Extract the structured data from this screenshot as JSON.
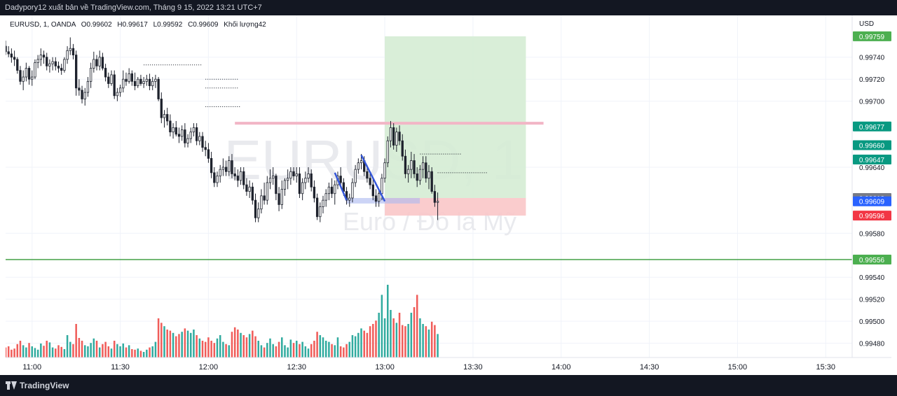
{
  "header": {
    "publish_line": "Dadypory12 xuất bản về TradingView.com, Tháng 9 15, 2022 13:21 UTC+7"
  },
  "legend": {
    "symbol": "EURUSD, 1, OANDA",
    "open": "O0.99602",
    "high": "H0.99617",
    "low": "L0.99592",
    "close": "C0.99609",
    "volume": "Khối lượng42"
  },
  "watermark": {
    "symbol": "EURUSD, 1",
    "description": "Euro / Đô la Mỹ"
  },
  "footer": {
    "brand": "TradingView"
  },
  "colors": {
    "up": "#26a69a",
    "down": "#ef5350",
    "candle_body": "#1e222d",
    "target_zone": "#d5ecd4",
    "stop_zone": "#f9c6c8",
    "level_line": "#43a047",
    "pink_line": "#f2b6c6",
    "blue_line": "#3557d8"
  },
  "chart_data": {
    "type": "candlestick",
    "currency_label": "USD",
    "ylim": [
      0.99467,
      0.99778
    ],
    "time_window": [
      "10:51",
      "15:39"
    ],
    "x_ticks": [
      {
        "t": "11:00",
        "label": "11:00"
      },
      {
        "t": "11:30",
        "label": "11:30"
      },
      {
        "t": "12:00",
        "label": "12:00"
      },
      {
        "t": "12:30",
        "label": "12:30"
      },
      {
        "t": "13:00",
        "label": "13:00"
      },
      {
        "t": "13:30",
        "label": "13:30"
      },
      {
        "t": "14:00",
        "label": "14:00"
      },
      {
        "t": "14:30",
        "label": "14:30"
      },
      {
        "t": "15:00",
        "label": "15:00"
      },
      {
        "t": "15:30",
        "label": "15:30"
      }
    ],
    "y_ticks": [
      {
        "v": 0.9974,
        "label": "0.99740"
      },
      {
        "v": 0.9972,
        "label": "0.99720"
      },
      {
        "v": 0.997,
        "label": "0.99700"
      },
      {
        "v": 0.9964,
        "label": "0.99640"
      },
      {
        "v": 0.9958,
        "label": "0.99580"
      },
      {
        "v": 0.9954,
        "label": "0.99540"
      },
      {
        "v": 0.9952,
        "label": "0.99520"
      },
      {
        "v": 0.995,
        "label": "0.99500"
      },
      {
        "v": 0.9948,
        "label": "0.99480"
      }
    ],
    "price_tags": [
      {
        "v": 0.99759,
        "label": "0.99759",
        "color": "#4caf50"
      },
      {
        "v": 0.99677,
        "label": "0.99677",
        "color": "#089981"
      },
      {
        "v": 0.9966,
        "label": "0.99660",
        "color": "#089981"
      },
      {
        "v": 0.99647,
        "label": "0.99647",
        "color": "#089981"
      },
      {
        "v": 0.99612,
        "label": "0.99612",
        "color": "#787b86"
      },
      {
        "v": 0.99609,
        "label": "0.99609",
        "color": "#2962ff"
      },
      {
        "v": 0.99596,
        "label": "0.99596",
        "color": "#f23645"
      },
      {
        "v": 0.99556,
        "label": "0.99556",
        "color": "#4caf50"
      }
    ],
    "volume_max": 130,
    "candles": [],
    "zones": {
      "target": {
        "t_start": "13:00",
        "t_end": "13:48",
        "top": 0.99759,
        "bottom": 0.99612
      },
      "stop": {
        "t_start": "13:00",
        "t_end": "13:48",
        "top": 0.99612,
        "bottom": 0.99596
      }
    },
    "horizontal_lines": [
      {
        "v": 0.99556,
        "t_start": "10:51",
        "t_end": "15:39",
        "color": "#43a047",
        "width": 1.5
      },
      {
        "v": 0.9968,
        "t_start": "12:09",
        "t_end": "13:54",
        "color": "#f2b6c6",
        "width": 4
      }
    ],
    "dotted_lines": [
      {
        "v": 0.99733,
        "t_start": "11:38",
        "t_end": "11:58"
      },
      {
        "v": 0.9972,
        "t_start": "11:59",
        "t_end": "12:10"
      },
      {
        "v": 0.99712,
        "t_start": "11:59",
        "t_end": "12:10"
      },
      {
        "v": 0.99695,
        "t_start": "11:59",
        "t_end": "12:11"
      },
      {
        "v": 0.99652,
        "t_start": "13:12",
        "t_end": "13:26"
      },
      {
        "v": 0.99635,
        "t_start": "13:18",
        "t_end": "13:35"
      }
    ],
    "blue_strokes": [
      {
        "points": [
          [
            "12:43",
            0.99635
          ],
          [
            "12:47",
            0.9961
          ]
        ]
      },
      {
        "points": [
          [
            "12:52",
            0.99651
          ],
          [
            "13:00",
            0.99609
          ]
        ]
      }
    ],
    "blue_band": {
      "t_start": "12:47",
      "t_end": "13:00",
      "top": 0.99612,
      "bottom": 0.99607
    }
  }
}
